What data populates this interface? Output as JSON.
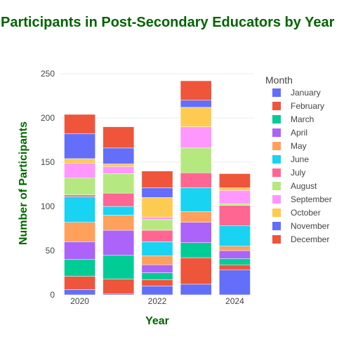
{
  "chart_data": {
    "type": "bar",
    "stacked": true,
    "title": "Participants in Post-Secondary Educators by Year",
    "xlabel": "Year",
    "ylabel": "Number of Participants",
    "x": [
      2020,
      2021,
      2022,
      2023,
      2024
    ],
    "x_tick_labels": [
      "2020",
      "2022",
      "2024"
    ],
    "x_tick_values": [
      2020,
      2022,
      2024
    ],
    "ylim": [
      0,
      250
    ],
    "y_ticks": [
      0,
      50,
      100,
      150,
      200,
      250
    ],
    "grid": true,
    "legend_title": "Month",
    "legend_position": "right",
    "series": [
      {
        "name": "January",
        "color": "#636efa",
        "values": [
          6,
          1,
          10,
          12,
          28
        ]
      },
      {
        "name": "February",
        "color": "#ef553b",
        "values": [
          15,
          17,
          7,
          30,
          6
        ]
      },
      {
        "name": "March",
        "color": "#00cc96",
        "values": [
          19,
          27,
          8,
          17,
          7
        ]
      },
      {
        "name": "April",
        "color": "#ab63fa",
        "values": [
          20,
          28,
          9,
          23,
          9
        ]
      },
      {
        "name": "May",
        "color": "#ffa15a",
        "values": [
          22,
          17,
          10,
          12,
          5
        ]
      },
      {
        "name": "June",
        "color": "#19d3f3",
        "values": [
          29,
          10,
          16,
          27,
          23
        ]
      },
      {
        "name": "July",
        "color": "#ff6692",
        "values": [
          2,
          15,
          13,
          17,
          23
        ]
      },
      {
        "name": "August",
        "color": "#b6e880",
        "values": [
          19,
          22,
          12,
          28,
          2
        ]
      },
      {
        "name": "September",
        "color": "#ff97ff",
        "values": [
          17,
          8,
          3,
          24,
          15
        ]
      },
      {
        "name": "October",
        "color": "#fecb52",
        "values": [
          5,
          3,
          22,
          22,
          3
        ]
      },
      {
        "name": "November",
        "color": "#636efa",
        "values": [
          28,
          18,
          11,
          8,
          0
        ]
      },
      {
        "name": "December",
        "color": "#ef553b",
        "values": [
          22,
          24,
          19,
          22,
          16
        ]
      }
    ]
  }
}
